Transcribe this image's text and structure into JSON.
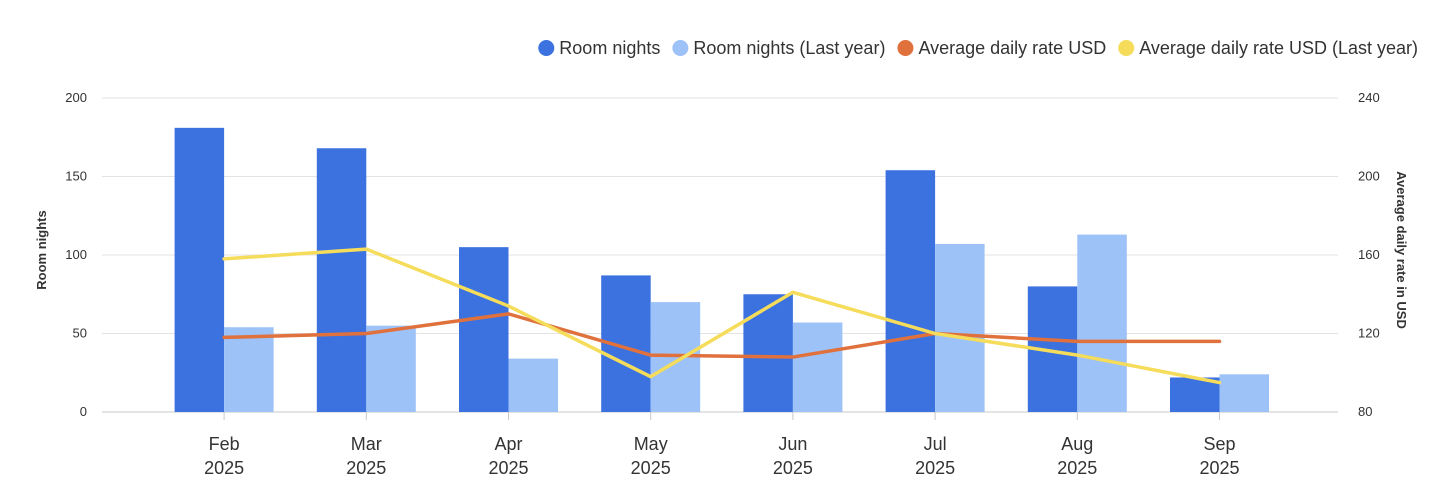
{
  "header": {
    "title": ""
  },
  "chart_data": {
    "type": "bar",
    "title": "",
    "categories": [
      "Feb 2025",
      "Mar 2025",
      "Apr 2025",
      "May 2025",
      "Jun 2025",
      "Jul 2025",
      "Aug 2025",
      "Sep 2025"
    ],
    "category_labels": [
      [
        "Feb",
        "2025"
      ],
      [
        "Mar",
        "2025"
      ],
      [
        "Apr",
        "2025"
      ],
      [
        "May",
        "2025"
      ],
      [
        "Jun",
        "2025"
      ],
      [
        "Jul",
        "2025"
      ],
      [
        "Aug",
        "2025"
      ],
      [
        "Sep",
        "2025"
      ]
    ],
    "ylabel": "Room nights",
    "y2label": "Average daily rate in USD",
    "ylim": [
      0,
      200
    ],
    "y2lim": [
      80,
      240
    ],
    "yticks": [
      "0",
      "50",
      "100",
      "150",
      "200"
    ],
    "y2ticks": [
      "80",
      "120",
      "160",
      "200",
      "240"
    ],
    "grid": true,
    "legend_position": "top-right",
    "series": [
      {
        "name": "Room nights",
        "type": "bar",
        "axis": "left",
        "color": "#3b72e0",
        "values": [
          181,
          168,
          105,
          87,
          75,
          154,
          80,
          22
        ]
      },
      {
        "name": "Room nights (Last year)",
        "type": "bar",
        "axis": "left",
        "color": "#9dc2f7",
        "values": [
          54,
          55,
          34,
          70,
          57,
          107,
          113,
          24
        ]
      },
      {
        "name": "Average daily rate USD",
        "type": "line",
        "axis": "right",
        "color": "#e0713d",
        "values": [
          118,
          120,
          130,
          109,
          108,
          120,
          116,
          116
        ]
      },
      {
        "name": "Average daily rate USD (Last year)",
        "type": "line",
        "axis": "right",
        "color": "#f5dc5a",
        "values": [
          158,
          163,
          134,
          98,
          141,
          120,
          109,
          95
        ]
      }
    ]
  }
}
